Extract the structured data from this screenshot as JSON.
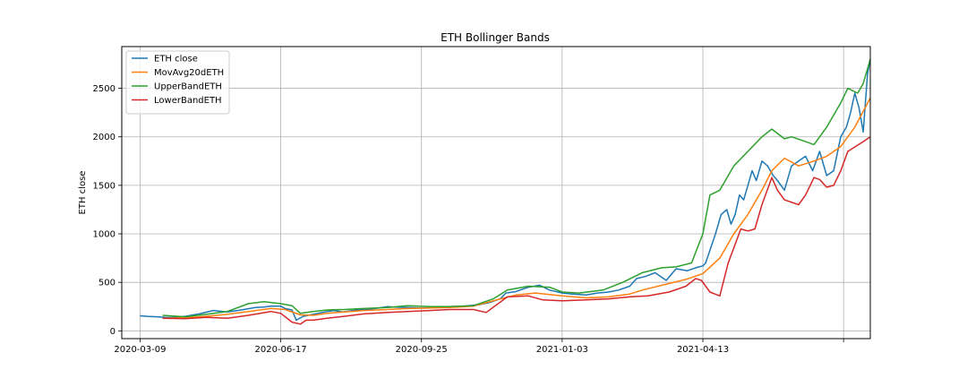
{
  "chart_data": {
    "type": "line",
    "title": "ETH Bollinger Bands",
    "xlabel": "",
    "ylabel": "ETH close",
    "grid": true,
    "legend_position": "top-left",
    "x_ticks": [
      {
        "date": "2020-03-09",
        "label": "2020-03-09"
      },
      {
        "date": "2020-06-17",
        "label": "2020-06-17"
      },
      {
        "date": "2020-09-25",
        "label": "2020-09-25"
      },
      {
        "date": "2021-01-03",
        "label": "2021-01-03"
      },
      {
        "date": "2021-04-13",
        "label": "2021-04-13"
      },
      {
        "date": "2021-07-22",
        "label": ""
      }
    ],
    "xlim": [
      "2020-02-25",
      "2021-08-10"
    ],
    "y_ticks": [
      0,
      500,
      1000,
      1500,
      2000,
      2500
    ],
    "ylim": [
      -80,
      2930
    ],
    "series": [
      {
        "name": "ETH close",
        "color": "#1f77b4",
        "x": [
          "2020-03-09",
          "2020-03-15",
          "2020-03-21",
          "2020-03-27",
          "2020-04-02",
          "2020-04-10",
          "2020-04-20",
          "2020-04-30",
          "2020-05-10",
          "2020-05-20",
          "2020-05-30",
          "2020-06-05",
          "2020-06-10",
          "2020-06-17",
          "2020-06-20",
          "2020-06-25",
          "2020-06-28",
          "2020-07-03",
          "2020-07-10",
          "2020-07-20",
          "2020-07-25",
          "2020-07-31",
          "2020-08-10",
          "2020-08-17",
          "2020-08-25",
          "2020-09-01",
          "2020-09-05",
          "2020-09-15",
          "2020-09-25",
          "2020-10-05",
          "2020-10-15",
          "2020-10-25",
          "2020-11-05",
          "2020-11-12",
          "2020-11-20",
          "2020-11-24",
          "2020-12-01",
          "2020-12-10",
          "2020-12-18",
          "2020-12-25",
          "2021-01-03",
          "2021-01-10",
          "2021-01-20",
          "2021-01-28",
          "2021-02-05",
          "2021-02-12",
          "2021-02-20",
          "2021-02-25",
          "2021-03-03",
          "2021-03-10",
          "2021-03-18",
          "2021-03-25",
          "2021-04-02",
          "2021-04-08",
          "2021-04-13",
          "2021-04-15",
          "2021-04-18",
          "2021-04-22",
          "2021-04-26",
          "2021-04-30",
          "2021-05-03",
          "2021-05-06",
          "2021-05-09",
          "2021-05-12",
          "2021-05-15",
          "2021-05-18",
          "2021-05-21",
          "2021-05-25",
          "2021-05-29",
          "2021-06-02",
          "2021-06-05",
          "2021-06-10",
          "2021-06-15",
          "2021-06-20",
          "2021-06-25",
          "2021-06-30",
          "2021-07-05",
          "2021-07-10",
          "2021-07-15",
          "2021-07-20",
          "2021-07-24",
          "2021-07-27",
          "2021-07-30",
          "2021-08-02",
          "2021-08-05",
          "2021-08-08",
          "2021-08-10"
        ],
        "y": [
          155,
          148,
          145,
          140,
          138,
          150,
          175,
          210,
          195,
          215,
          240,
          245,
          255,
          255,
          230,
          215,
          110,
          150,
          170,
          200,
          210,
          195,
          215,
          220,
          235,
          250,
          245,
          240,
          235,
          240,
          250,
          255,
          270,
          290,
          330,
          390,
          405,
          450,
          470,
          420,
          390,
          380,
          370,
          390,
          400,
          420,
          460,
          540,
          560,
          600,
          520,
          640,
          620,
          650,
          670,
          700,
          830,
          1000,
          1200,
          1250,
          1100,
          1200,
          1400,
          1350,
          1500,
          1650,
          1550,
          1750,
          1700,
          1600,
          1550,
          1450,
          1700,
          1750,
          1800,
          1650,
          1850,
          1600,
          1650,
          2000,
          2100,
          2250,
          2450,
          2300,
          2050,
          2650,
          2800
        ]
      },
      {
        "name": "MovAvg20dETH",
        "color": "#ff7f0e",
        "x": [
          "2020-03-25",
          "2020-04-10",
          "2020-04-25",
          "2020-05-10",
          "2020-05-25",
          "2020-06-10",
          "2020-06-20",
          "2020-07-01",
          "2020-07-10",
          "2020-07-20",
          "2020-08-01",
          "2020-08-15",
          "2020-09-01",
          "2020-09-15",
          "2020-10-01",
          "2020-10-15",
          "2020-11-01",
          "2020-11-15",
          "2020-12-01",
          "2020-12-15",
          "2021-01-03",
          "2021-01-20",
          "2021-02-05",
          "2021-02-20",
          "2021-03-01",
          "2021-03-15",
          "2021-04-01",
          "2021-04-13",
          "2021-04-25",
          "2021-05-05",
          "2021-05-15",
          "2021-05-25",
          "2021-06-01",
          "2021-06-10",
          "2021-06-20",
          "2021-07-01",
          "2021-07-10",
          "2021-07-20",
          "2021-07-30",
          "2021-08-10"
        ],
        "y": [
          130,
          135,
          150,
          170,
          200,
          230,
          220,
          165,
          160,
          180,
          195,
          210,
          220,
          230,
          235,
          240,
          255,
          310,
          370,
          390,
          360,
          340,
          350,
          380,
          420,
          470,
          530,
          590,
          750,
          1000,
          1200,
          1450,
          1650,
          1780,
          1700,
          1750,
          1800,
          1900,
          2100,
          2400
        ]
      },
      {
        "name": "UpperBandETH",
        "color": "#2ca02c",
        "x": [
          "2020-03-25",
          "2020-04-10",
          "2020-04-25",
          "2020-05-10",
          "2020-05-25",
          "2020-06-05",
          "2020-06-17",
          "2020-06-25",
          "2020-07-01",
          "2020-07-10",
          "2020-07-20",
          "2020-08-01",
          "2020-08-15",
          "2020-09-01",
          "2020-09-15",
          "2020-10-01",
          "2020-10-15",
          "2020-11-01",
          "2020-11-15",
          "2020-11-25",
          "2020-12-10",
          "2020-12-25",
          "2021-01-03",
          "2021-01-15",
          "2021-02-01",
          "2021-02-15",
          "2021-03-01",
          "2021-03-15",
          "2021-03-25",
          "2021-04-05",
          "2021-04-13",
          "2021-04-18",
          "2021-04-25",
          "2021-05-05",
          "2021-05-15",
          "2021-05-25",
          "2021-06-01",
          "2021-06-10",
          "2021-06-15",
          "2021-06-25",
          "2021-07-01",
          "2021-07-10",
          "2021-07-20",
          "2021-07-25",
          "2021-08-01",
          "2021-08-05",
          "2021-08-10"
        ],
        "y": [
          160,
          145,
          170,
          200,
          280,
          300,
          280,
          260,
          180,
          200,
          215,
          220,
          230,
          240,
          260,
          250,
          250,
          260,
          330,
          420,
          460,
          450,
          400,
          390,
          420,
          500,
          600,
          650,
          660,
          700,
          1000,
          1400,
          1450,
          1700,
          1850,
          2000,
          2080,
          1980,
          2000,
          1950,
          1920,
          2100,
          2350,
          2500,
          2450,
          2550,
          2800
        ]
      },
      {
        "name": "LowerBandETH",
        "color": "#d62728",
        "x": [
          "2020-03-25",
          "2020-04-10",
          "2020-04-25",
          "2020-05-10",
          "2020-05-25",
          "2020-06-10",
          "2020-06-17",
          "2020-06-25",
          "2020-07-01",
          "2020-07-05",
          "2020-07-10",
          "2020-07-20",
          "2020-08-01",
          "2020-08-15",
          "2020-09-01",
          "2020-09-15",
          "2020-10-01",
          "2020-10-15",
          "2020-11-01",
          "2020-11-10",
          "2020-11-25",
          "2020-12-10",
          "2020-12-20",
          "2021-01-03",
          "2021-01-20",
          "2021-02-05",
          "2021-02-20",
          "2021-03-05",
          "2021-03-20",
          "2021-04-01",
          "2021-04-08",
          "2021-04-12",
          "2021-04-18",
          "2021-04-25",
          "2021-05-01",
          "2021-05-10",
          "2021-05-15",
          "2021-05-20",
          "2021-05-25",
          "2021-06-01",
          "2021-06-05",
          "2021-06-10",
          "2021-06-20",
          "2021-06-25",
          "2021-07-01",
          "2021-07-05",
          "2021-07-10",
          "2021-07-15",
          "2021-07-20",
          "2021-07-25",
          "2021-08-05",
          "2021-08-10"
        ],
        "y": [
          130,
          125,
          140,
          130,
          160,
          200,
          180,
          90,
          70,
          110,
          110,
          130,
          150,
          175,
          190,
          200,
          210,
          220,
          220,
          190,
          350,
          360,
          320,
          310,
          320,
          330,
          350,
          360,
          400,
          460,
          540,
          520,
          400,
          360,
          700,
          1050,
          1030,
          1050,
          1300,
          1580,
          1450,
          1350,
          1300,
          1400,
          1580,
          1560,
          1480,
          1500,
          1650,
          1850,
          1950,
          2000
        ]
      }
    ]
  }
}
